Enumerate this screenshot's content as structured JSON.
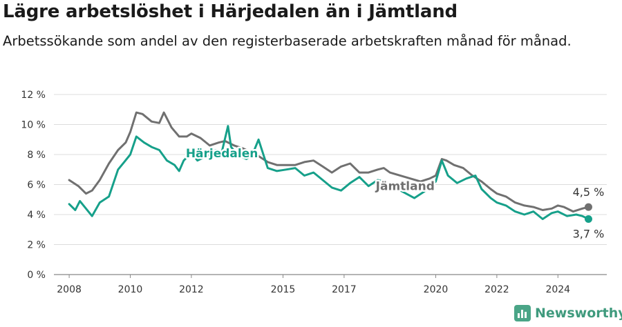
{
  "header": {
    "title": "Lägre arbetslöshet i Härjedalen än i Jämtland",
    "subtitle": "Arbetssökande som andel av den registerbaserade arbetskraften månad för månad."
  },
  "brand": {
    "name": "Newsworthy",
    "icon": "newsworthy-logo-icon",
    "color": "#4aa587"
  },
  "chart_data": {
    "type": "line",
    "title": "Lägre arbetslöshet i Härjedalen än i Jämtland",
    "xlabel": "",
    "ylabel": "",
    "xlim": [
      2007.5,
      2025.6
    ],
    "ylim": [
      0,
      12
    ],
    "grid": true,
    "x_ticks": [
      2008,
      2010,
      2012,
      2015,
      2017,
      2020,
      2022,
      2024
    ],
    "x_tick_labels": [
      "2008",
      "2010",
      "2012",
      "2015",
      "2017",
      "2020",
      "2022",
      "2024"
    ],
    "y_ticks": [
      0,
      2,
      4,
      6,
      8,
      10,
      12
    ],
    "y_tick_labels": [
      "0 %",
      "2 %",
      "4 %",
      "6 %",
      "8 %",
      "10 %",
      "12 %"
    ],
    "series": [
      {
        "name": "Jämtland",
        "color": "#707070",
        "label_x": 2019.0,
        "label_y": 5.9,
        "end_label": "4,5 %",
        "x": [
          2008.0,
          2008.3,
          2008.55,
          2008.75,
          2009.0,
          2009.3,
          2009.6,
          2009.85,
          2010.0,
          2010.2,
          2010.4,
          2010.7,
          2010.95,
          2011.1,
          2011.35,
          2011.6,
          2011.85,
          2012.0,
          2012.3,
          2012.6,
          2012.9,
          2013.1,
          2013.4,
          2013.7,
          2014.0,
          2014.2,
          2014.5,
          2014.8,
          2015.1,
          2015.4,
          2015.7,
          2016.0,
          2016.3,
          2016.6,
          2016.9,
          2017.2,
          2017.5,
          2017.8,
          2018.1,
          2018.3,
          2018.5,
          2019.5,
          2019.8,
          2020.0,
          2020.2,
          2020.35,
          2020.6,
          2020.9,
          2021.2,
          2021.5,
          2021.8,
          2022.0,
          2022.3,
          2022.6,
          2022.9,
          2023.2,
          2023.5,
          2023.8,
          2024.0,
          2024.2,
          2024.5,
          2024.8,
          2025.0
        ],
        "y": [
          6.3,
          5.9,
          5.4,
          5.6,
          6.3,
          7.4,
          8.3,
          8.8,
          9.5,
          10.8,
          10.7,
          10.2,
          10.1,
          10.8,
          9.8,
          9.2,
          9.2,
          9.4,
          9.1,
          8.6,
          8.8,
          8.9,
          8.6,
          8.4,
          8.1,
          7.9,
          7.5,
          7.3,
          7.3,
          7.3,
          7.5,
          7.6,
          7.2,
          6.8,
          7.2,
          7.4,
          6.8,
          6.8,
          7.0,
          7.1,
          6.8,
          6.2,
          6.4,
          6.6,
          7.7,
          7.6,
          7.3,
          7.1,
          6.6,
          6.2,
          5.7,
          5.4,
          5.2,
          4.8,
          4.6,
          4.5,
          4.3,
          4.4,
          4.6,
          4.5,
          4.2,
          4.4,
          4.5
        ]
      },
      {
        "name": "Härjedalen",
        "color": "#16a08a",
        "label_x": 2013.0,
        "label_y": 8.1,
        "end_label": "3,7 %",
        "x": [
          2008.0,
          2008.2,
          2008.35,
          2008.55,
          2008.75,
          2009.0,
          2009.3,
          2009.6,
          2009.8,
          2010.0,
          2010.2,
          2010.45,
          2010.7,
          2010.95,
          2011.2,
          2011.45,
          2011.6,
          2011.75,
          2012.0,
          2012.2,
          2012.5,
          2012.8,
          2013.0,
          2013.2,
          2013.3,
          2013.5,
          2013.8,
          2014.0,
          2014.2,
          2014.5,
          2014.8,
          2015.1,
          2015.4,
          2015.7,
          2016.0,
          2016.3,
          2016.6,
          2016.9,
          2017.2,
          2017.5,
          2017.8,
          2018.1,
          2018.3,
          2019.3,
          2019.6,
          2019.8,
          2020.0,
          2020.2,
          2020.4,
          2020.7,
          2021.0,
          2021.3,
          2021.5,
          2021.8,
          2022.0,
          2022.3,
          2022.6,
          2022.9,
          2023.2,
          2023.5,
          2023.8,
          2024.0,
          2024.3,
          2024.6,
          2024.8,
          2025.0
        ],
        "y": [
          4.7,
          4.3,
          4.9,
          4.4,
          3.9,
          4.8,
          5.2,
          7.0,
          7.5,
          8.0,
          9.2,
          8.8,
          8.5,
          8.3,
          7.6,
          7.3,
          6.9,
          7.6,
          8.1,
          7.6,
          7.9,
          8.3,
          8.2,
          9.9,
          8.5,
          8.0,
          7.7,
          8.0,
          9.0,
          7.1,
          6.9,
          7.0,
          7.1,
          6.6,
          6.8,
          6.3,
          5.8,
          5.6,
          6.1,
          6.5,
          5.9,
          6.3,
          6.2,
          5.1,
          5.5,
          5.8,
          6.2,
          7.6,
          6.6,
          6.1,
          6.4,
          6.6,
          5.7,
          5.1,
          4.8,
          4.6,
          4.2,
          4.0,
          4.2,
          3.7,
          4.1,
          4.2,
          3.9,
          4.0,
          3.9,
          3.7
        ]
      }
    ]
  }
}
